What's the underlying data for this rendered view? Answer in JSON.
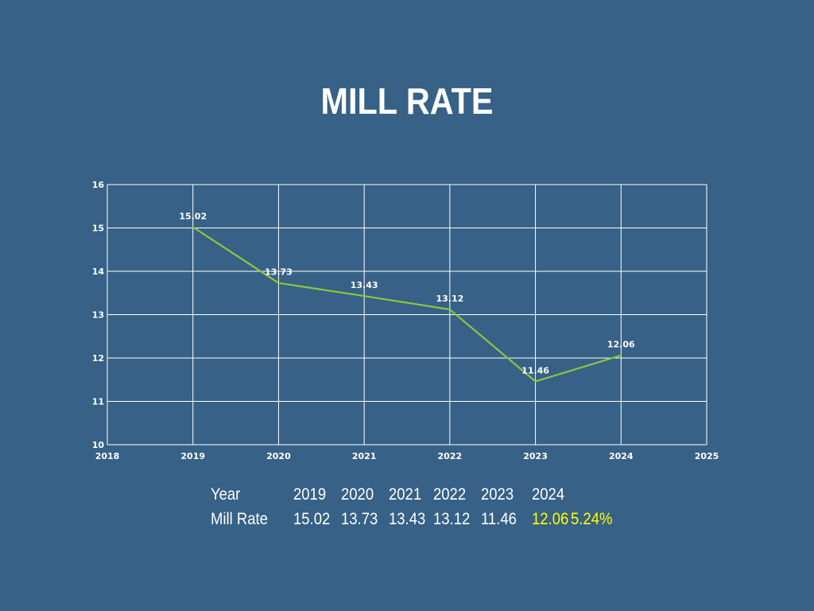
{
  "accent_color": "#8dc63f",
  "highlight_color": "#ffff00",
  "background_color": "#376186",
  "chart_data": {
    "type": "line",
    "title": "MILL RATE",
    "xlabel": "",
    "ylabel": "",
    "xlim": [
      2018,
      2025
    ],
    "ylim": [
      10,
      16
    ],
    "x_ticks": [
      "2018",
      "2019",
      "2020",
      "2021",
      "2022",
      "2023",
      "2024",
      "2025"
    ],
    "y_ticks": [
      "10",
      "11",
      "12",
      "13",
      "14",
      "15",
      "16"
    ],
    "grid": true,
    "legend": "none",
    "series": [
      {
        "color": "#8dc63f",
        "x": [
          2019,
          2020,
          2021,
          2022,
          2023,
          2024
        ],
        "y": [
          15.02,
          13.73,
          13.43,
          13.12,
          11.46,
          12.06
        ],
        "labels": [
          "15.02",
          "13.73",
          "13.43",
          "13.12",
          "11.46",
          "12.06"
        ]
      }
    ]
  },
  "summary_table": {
    "year_label": "Year",
    "rate_label": "Mill Rate",
    "years": [
      "2019",
      "2020",
      "2021",
      "2022",
      "2023",
      "2024"
    ],
    "rates": [
      "15.02",
      "13.73",
      "13.43",
      "13.12",
      "11.46",
      "12.06"
    ],
    "change": "5.24%"
  }
}
